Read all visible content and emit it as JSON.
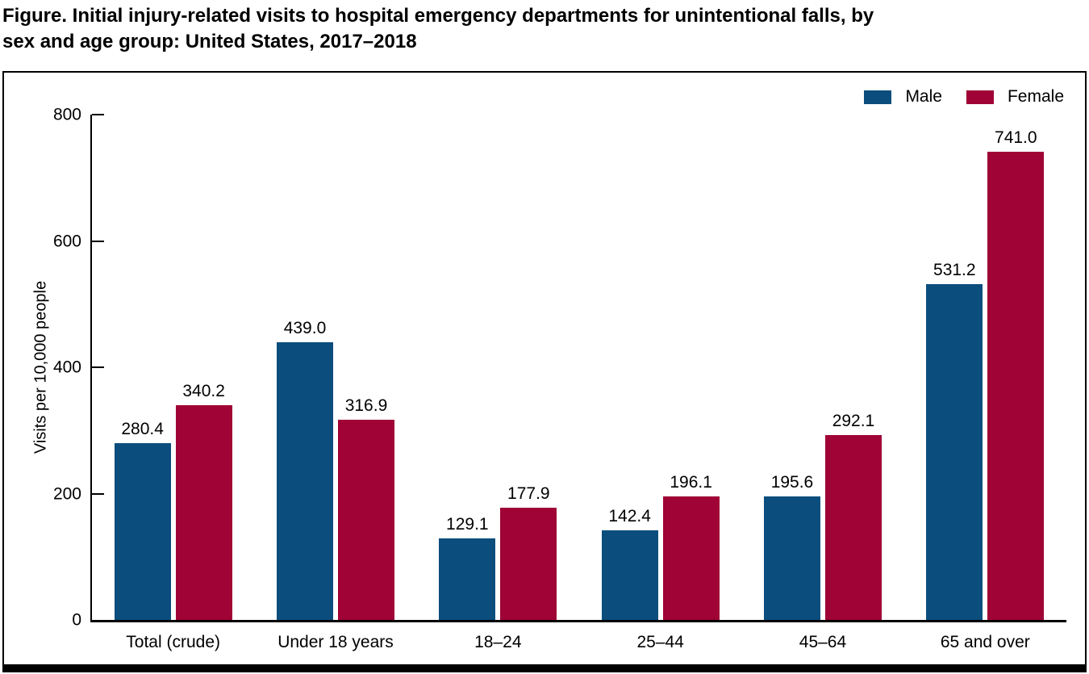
{
  "title": {
    "line1": "Figure. Initial injury-related visits to hospital emergency departments for unintentional falls, by",
    "line2": "sex and age group: United States, 2017–2018"
  },
  "colors": {
    "male_bar": "#0B4D7D",
    "female_bar": "#A00336",
    "axis": "#000000",
    "frame": "#000000",
    "text": "#000000"
  },
  "chart_data": {
    "type": "bar",
    "categories": [
      "Total (crude)",
      "Under 18 years",
      "18–24",
      "25–44",
      "45–64",
      "65 and over"
    ],
    "series": [
      {
        "name": "Male",
        "color": "#0B4D7D",
        "values": [
          280.4,
          439.0,
          129.1,
          142.4,
          195.6,
          531.2
        ]
      },
      {
        "name": "Female",
        "color": "#A00336",
        "values": [
          340.2,
          316.9,
          177.9,
          196.1,
          292.1,
          741.0
        ]
      }
    ],
    "title": "Figure. Initial injury-related visits to hospital emergency departments for unintentional falls, by sex and age group: United States, 2017–2018",
    "xlabel": "",
    "ylabel": "Visits per 10,000 people",
    "ylim": [
      0,
      800
    ],
    "yticks": [
      0,
      200,
      400,
      600,
      800
    ],
    "grid": false,
    "legend_position": "top-right",
    "value_labels": true,
    "value_label_format": "1 decimal place"
  }
}
